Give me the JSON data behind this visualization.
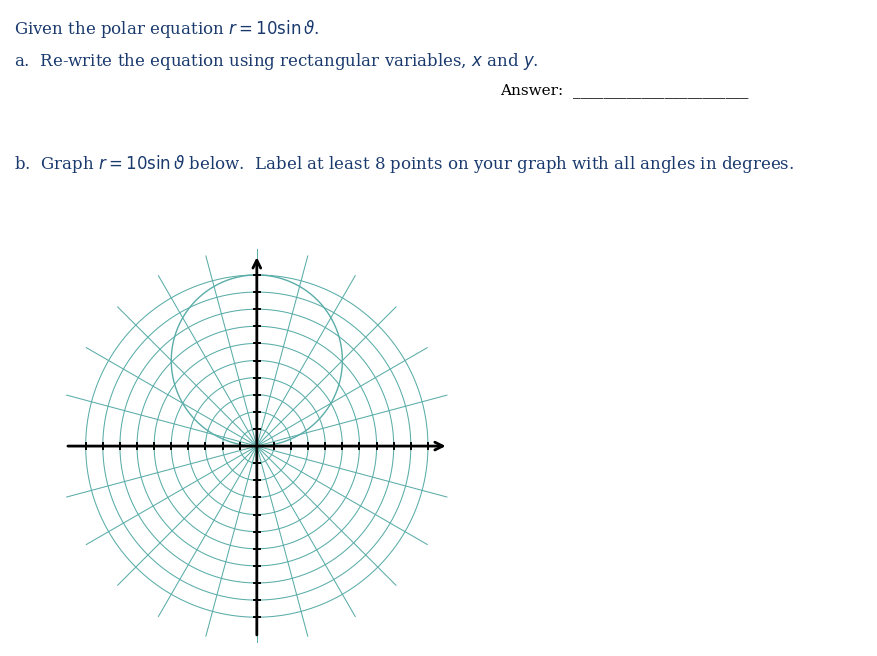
{
  "bg_color": "#ffffff",
  "grid_color": "#5aada8",
  "axis_color": "#000000",
  "text_color_blue": "#1a3a6e",
  "text_color_black": "#000000",
  "num_circles": 10,
  "max_r": 10,
  "angle_lines_deg": [
    15,
    30,
    45,
    60,
    75,
    105,
    120,
    135,
    150,
    165
  ],
  "grid_lw": 0.75,
  "curve_lw": 1.0,
  "axis_lw": 2.0,
  "tick_half": 0.18,
  "axis_extent": 11.2,
  "radial_extend": 1.5,
  "title_fs": 12,
  "body_fs": 12,
  "answer_fs": 11
}
